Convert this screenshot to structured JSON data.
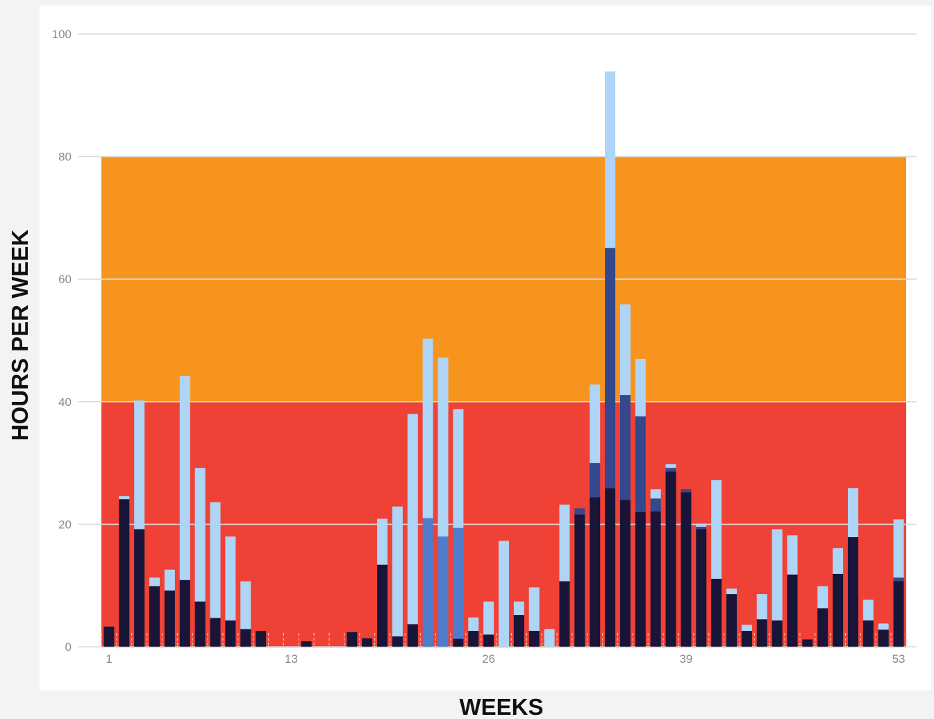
{
  "chart_data": {
    "type": "bar",
    "stacked": true,
    "xlabel": "WEEKS",
    "ylabel": "HOURS PER WEEK",
    "ylim": [
      0,
      100
    ],
    "y_ticks": [
      0,
      20,
      40,
      60,
      80,
      100
    ],
    "x_ticks": [
      1,
      13,
      26,
      39,
      53
    ],
    "bands": [
      {
        "from": 0,
        "to": 40,
        "color": "#ef4136"
      },
      {
        "from": 40,
        "to": 80,
        "color": "#f7941d"
      }
    ],
    "colors": {
      "background": "#f1f3f5",
      "plot": "#ffffff",
      "grid": "#dcdcdc",
      "dark": "#181538",
      "mid": "#35488d",
      "blue": "#4f7ccb",
      "light": "#aed4f6"
    },
    "weeks": [
      1,
      2,
      3,
      4,
      5,
      6,
      7,
      8,
      9,
      10,
      11,
      12,
      13,
      14,
      15,
      16,
      17,
      18,
      19,
      20,
      21,
      22,
      23,
      24,
      25,
      26,
      27,
      28,
      29,
      30,
      31,
      32,
      33,
      34,
      35,
      36,
      37,
      38,
      39,
      40,
      41,
      42,
      43,
      44,
      45,
      46,
      47,
      48,
      49,
      50,
      51,
      52,
      53
    ],
    "series": [
      {
        "key": "dark",
        "values": [
          3.3,
          24.1,
          19.2,
          9.9,
          9.2,
          10.9,
          7.4,
          4.7,
          4.3,
          2.9,
          2.6,
          0,
          0,
          0.9,
          0,
          0,
          2.4,
          1.4,
          13.4,
          1.7,
          3.7,
          0,
          0,
          1.3,
          2.6,
          2.0,
          0,
          5.2,
          2.6,
          0,
          10.7,
          21.6,
          24.4,
          25.9,
          24.0,
          22.0,
          22.1,
          28.6,
          25.2,
          19.2,
          11.1,
          8.6,
          2.6,
          4.5,
          4.3,
          11.8,
          1.2,
          6.3,
          11.9,
          17.9,
          4.3,
          2.8,
          10.7
        ]
      },
      {
        "key": "mid",
        "values": [
          0,
          0,
          0,
          0,
          0,
          0,
          0,
          0,
          0,
          0,
          0,
          0,
          0,
          0,
          0,
          0,
          0,
          0,
          0,
          0,
          0,
          0,
          0,
          0,
          0,
          0,
          0,
          0,
          0,
          0,
          0,
          1.0,
          5.6,
          39.2,
          17.1,
          15.6,
          2.1,
          0.6,
          0.5,
          0.4,
          0,
          0,
          0,
          0,
          0,
          0,
          0,
          0,
          0,
          0,
          0,
          0,
          0.6
        ]
      },
      {
        "key": "blue",
        "values": [
          0,
          0,
          0,
          0,
          0,
          0,
          0,
          0,
          0,
          0,
          0,
          0,
          0,
          0,
          0,
          0,
          0,
          0,
          0,
          0,
          0,
          21.0,
          18.0,
          18.1,
          0,
          0,
          0,
          0,
          0,
          0,
          0,
          0,
          0,
          0,
          0,
          0,
          0,
          0,
          0,
          0,
          0,
          0,
          0,
          0,
          0,
          0,
          0,
          0,
          0,
          0,
          0,
          0,
          0
        ]
      },
      {
        "key": "light",
        "values": [
          0,
          0.5,
          21.0,
          1.4,
          3.4,
          33.3,
          21.8,
          18.9,
          13.7,
          7.8,
          0,
          0,
          0,
          0,
          0,
          0,
          0,
          0,
          7.5,
          21.2,
          34.3,
          29.3,
          29.2,
          19.4,
          2.2,
          5.4,
          17.3,
          2.2,
          7.1,
          2.9,
          12.5,
          0,
          12.8,
          28.8,
          14.8,
          9.4,
          1.5,
          0.6,
          0,
          0.5,
          16.1,
          0.9,
          1.0,
          4.1,
          14.9,
          6.4,
          0,
          3.6,
          4.2,
          8.0,
          3.4,
          1.0,
          9.5
        ]
      }
    ]
  }
}
